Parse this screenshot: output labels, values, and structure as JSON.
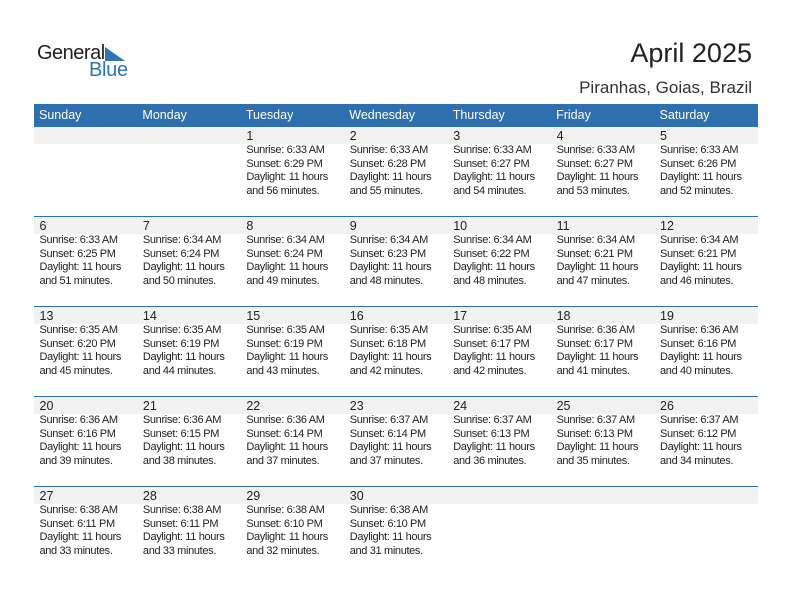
{
  "logo": {
    "word1": "General",
    "word2": "Blue"
  },
  "header": {
    "title": "April 2025",
    "location": "Piranhas, Goias, Brazil"
  },
  "colors": {
    "header_bg": "#2e6fb0",
    "day_strip": "#f2f2f2",
    "logo_blue": "#2e75b6"
  },
  "weekdays": [
    "Sunday",
    "Monday",
    "Tuesday",
    "Wednesday",
    "Thursday",
    "Friday",
    "Saturday"
  ],
  "labels": {
    "sunrise": "Sunrise:",
    "sunset": "Sunset:",
    "daylight": "Daylight:"
  },
  "first_weekday_index": 2,
  "days": [
    {
      "d": "1",
      "sunrise": "6:33 AM",
      "sunset": "6:29 PM",
      "daylight": "11 hours",
      "rest": "and 56 minutes."
    },
    {
      "d": "2",
      "sunrise": "6:33 AM",
      "sunset": "6:28 PM",
      "daylight": "11 hours",
      "rest": "and 55 minutes."
    },
    {
      "d": "3",
      "sunrise": "6:33 AM",
      "sunset": "6:27 PM",
      "daylight": "11 hours",
      "rest": "and 54 minutes."
    },
    {
      "d": "4",
      "sunrise": "6:33 AM",
      "sunset": "6:27 PM",
      "daylight": "11 hours",
      "rest": "and 53 minutes."
    },
    {
      "d": "5",
      "sunrise": "6:33 AM",
      "sunset": "6:26 PM",
      "daylight": "11 hours",
      "rest": "and 52 minutes."
    },
    {
      "d": "6",
      "sunrise": "6:33 AM",
      "sunset": "6:25 PM",
      "daylight": "11 hours",
      "rest": "and 51 minutes."
    },
    {
      "d": "7",
      "sunrise": "6:34 AM",
      "sunset": "6:24 PM",
      "daylight": "11 hours",
      "rest": "and 50 minutes."
    },
    {
      "d": "8",
      "sunrise": "6:34 AM",
      "sunset": "6:24 PM",
      "daylight": "11 hours",
      "rest": "and 49 minutes."
    },
    {
      "d": "9",
      "sunrise": "6:34 AM",
      "sunset": "6:23 PM",
      "daylight": "11 hours",
      "rest": "and 48 minutes."
    },
    {
      "d": "10",
      "sunrise": "6:34 AM",
      "sunset": "6:22 PM",
      "daylight": "11 hours",
      "rest": "and 48 minutes."
    },
    {
      "d": "11",
      "sunrise": "6:34 AM",
      "sunset": "6:21 PM",
      "daylight": "11 hours",
      "rest": "and 47 minutes."
    },
    {
      "d": "12",
      "sunrise": "6:34 AM",
      "sunset": "6:21 PM",
      "daylight": "11 hours",
      "rest": "and 46 minutes."
    },
    {
      "d": "13",
      "sunrise": "6:35 AM",
      "sunset": "6:20 PM",
      "daylight": "11 hours",
      "rest": "and 45 minutes."
    },
    {
      "d": "14",
      "sunrise": "6:35 AM",
      "sunset": "6:19 PM",
      "daylight": "11 hours",
      "rest": "and 44 minutes."
    },
    {
      "d": "15",
      "sunrise": "6:35 AM",
      "sunset": "6:19 PM",
      "daylight": "11 hours",
      "rest": "and 43 minutes."
    },
    {
      "d": "16",
      "sunrise": "6:35 AM",
      "sunset": "6:18 PM",
      "daylight": "11 hours",
      "rest": "and 42 minutes."
    },
    {
      "d": "17",
      "sunrise": "6:35 AM",
      "sunset": "6:17 PM",
      "daylight": "11 hours",
      "rest": "and 42 minutes."
    },
    {
      "d": "18",
      "sunrise": "6:36 AM",
      "sunset": "6:17 PM",
      "daylight": "11 hours",
      "rest": "and 41 minutes."
    },
    {
      "d": "19",
      "sunrise": "6:36 AM",
      "sunset": "6:16 PM",
      "daylight": "11 hours",
      "rest": "and 40 minutes."
    },
    {
      "d": "20",
      "sunrise": "6:36 AM",
      "sunset": "6:16 PM",
      "daylight": "11 hours",
      "rest": "and 39 minutes."
    },
    {
      "d": "21",
      "sunrise": "6:36 AM",
      "sunset": "6:15 PM",
      "daylight": "11 hours",
      "rest": "and 38 minutes."
    },
    {
      "d": "22",
      "sunrise": "6:36 AM",
      "sunset": "6:14 PM",
      "daylight": "11 hours",
      "rest": "and 37 minutes."
    },
    {
      "d": "23",
      "sunrise": "6:37 AM",
      "sunset": "6:14 PM",
      "daylight": "11 hours",
      "rest": "and 37 minutes."
    },
    {
      "d": "24",
      "sunrise": "6:37 AM",
      "sunset": "6:13 PM",
      "daylight": "11 hours",
      "rest": "and 36 minutes."
    },
    {
      "d": "25",
      "sunrise": "6:37 AM",
      "sunset": "6:13 PM",
      "daylight": "11 hours",
      "rest": "and 35 minutes."
    },
    {
      "d": "26",
      "sunrise": "6:37 AM",
      "sunset": "6:12 PM",
      "daylight": "11 hours",
      "rest": "and 34 minutes."
    },
    {
      "d": "27",
      "sunrise": "6:38 AM",
      "sunset": "6:11 PM",
      "daylight": "11 hours",
      "rest": "and 33 minutes."
    },
    {
      "d": "28",
      "sunrise": "6:38 AM",
      "sunset": "6:11 PM",
      "daylight": "11 hours",
      "rest": "and 33 minutes."
    },
    {
      "d": "29",
      "sunrise": "6:38 AM",
      "sunset": "6:10 PM",
      "daylight": "11 hours",
      "rest": "and 32 minutes."
    },
    {
      "d": "30",
      "sunrise": "6:38 AM",
      "sunset": "6:10 PM",
      "daylight": "11 hours",
      "rest": "and 31 minutes."
    }
  ]
}
